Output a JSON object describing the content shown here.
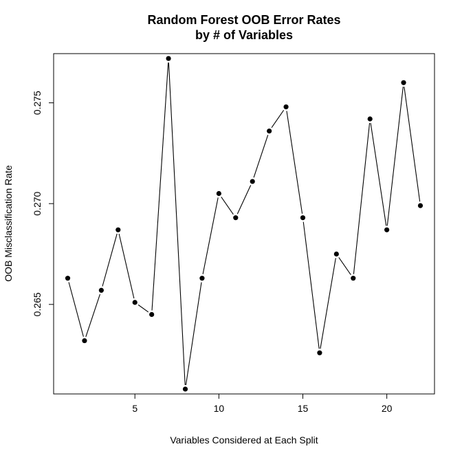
{
  "chart_data": {
    "type": "line",
    "title": [
      "Random Forest OOB Error Rates",
      "by # of Variables"
    ],
    "xlabel": "Variables Considered at Each Split",
    "ylabel": "OOB Misclassification Rate",
    "x": [
      1,
      2,
      3,
      4,
      5,
      6,
      7,
      8,
      9,
      10,
      11,
      12,
      13,
      14,
      15,
      16,
      17,
      18,
      19,
      20,
      21,
      22
    ],
    "y": [
      0.2663,
      0.2632,
      0.2657,
      0.2687,
      0.2651,
      0.2645,
      0.2772,
      0.2608,
      0.2663,
      0.2705,
      0.2693,
      0.2711,
      0.2736,
      0.2748,
      0.2693,
      0.2626,
      0.2675,
      0.2663,
      0.2742,
      0.2687,
      0.276,
      0.2699
    ],
    "xlim": [
      0.16,
      22.84
    ],
    "ylim": [
      0.26056,
      0.27744
    ],
    "xticks": [
      5,
      10,
      15,
      20
    ],
    "xtick_labels": [
      "5",
      "10",
      "15",
      "20"
    ],
    "yticks": [
      0.265,
      0.27,
      0.275
    ],
    "ytick_labels": [
      "0.265",
      "0.270",
      "0.275"
    ],
    "grid": false,
    "marker": "filled-circle",
    "line_color": "#000000",
    "marker_color": "#000000"
  }
}
